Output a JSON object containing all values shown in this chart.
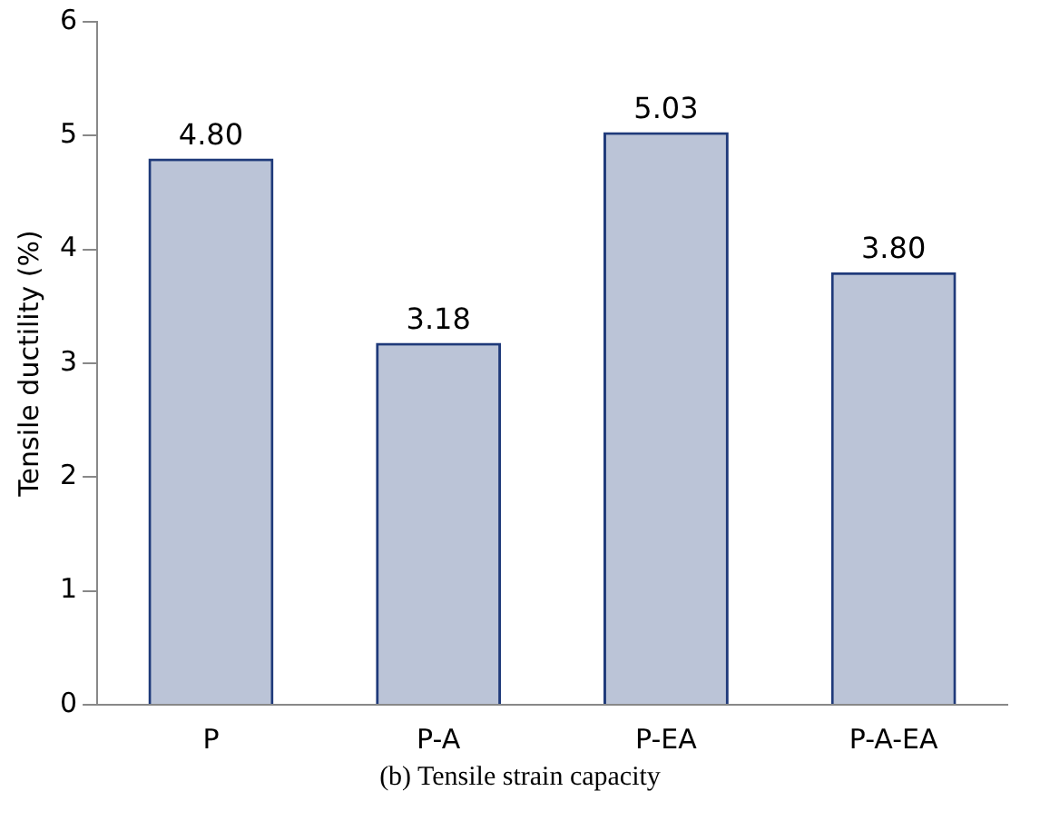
{
  "chart_data": {
    "type": "bar",
    "ylabel": "Tensile ductility (%)",
    "categories": [
      "P",
      "P-A",
      "P-EA",
      "P-A-EA"
    ],
    "values": [
      4.8,
      3.18,
      5.03,
      3.8
    ],
    "value_labels": [
      "4.80",
      "3.18",
      "5.03",
      "3.80"
    ],
    "color": "#1f3a7a",
    "ylim": [
      0,
      6
    ],
    "yticks": [
      0,
      1,
      2,
      3,
      4,
      5,
      6
    ],
    "grid": false,
    "legend": false,
    "annotations": [
      "(b) Tensile strain capacity"
    ]
  }
}
